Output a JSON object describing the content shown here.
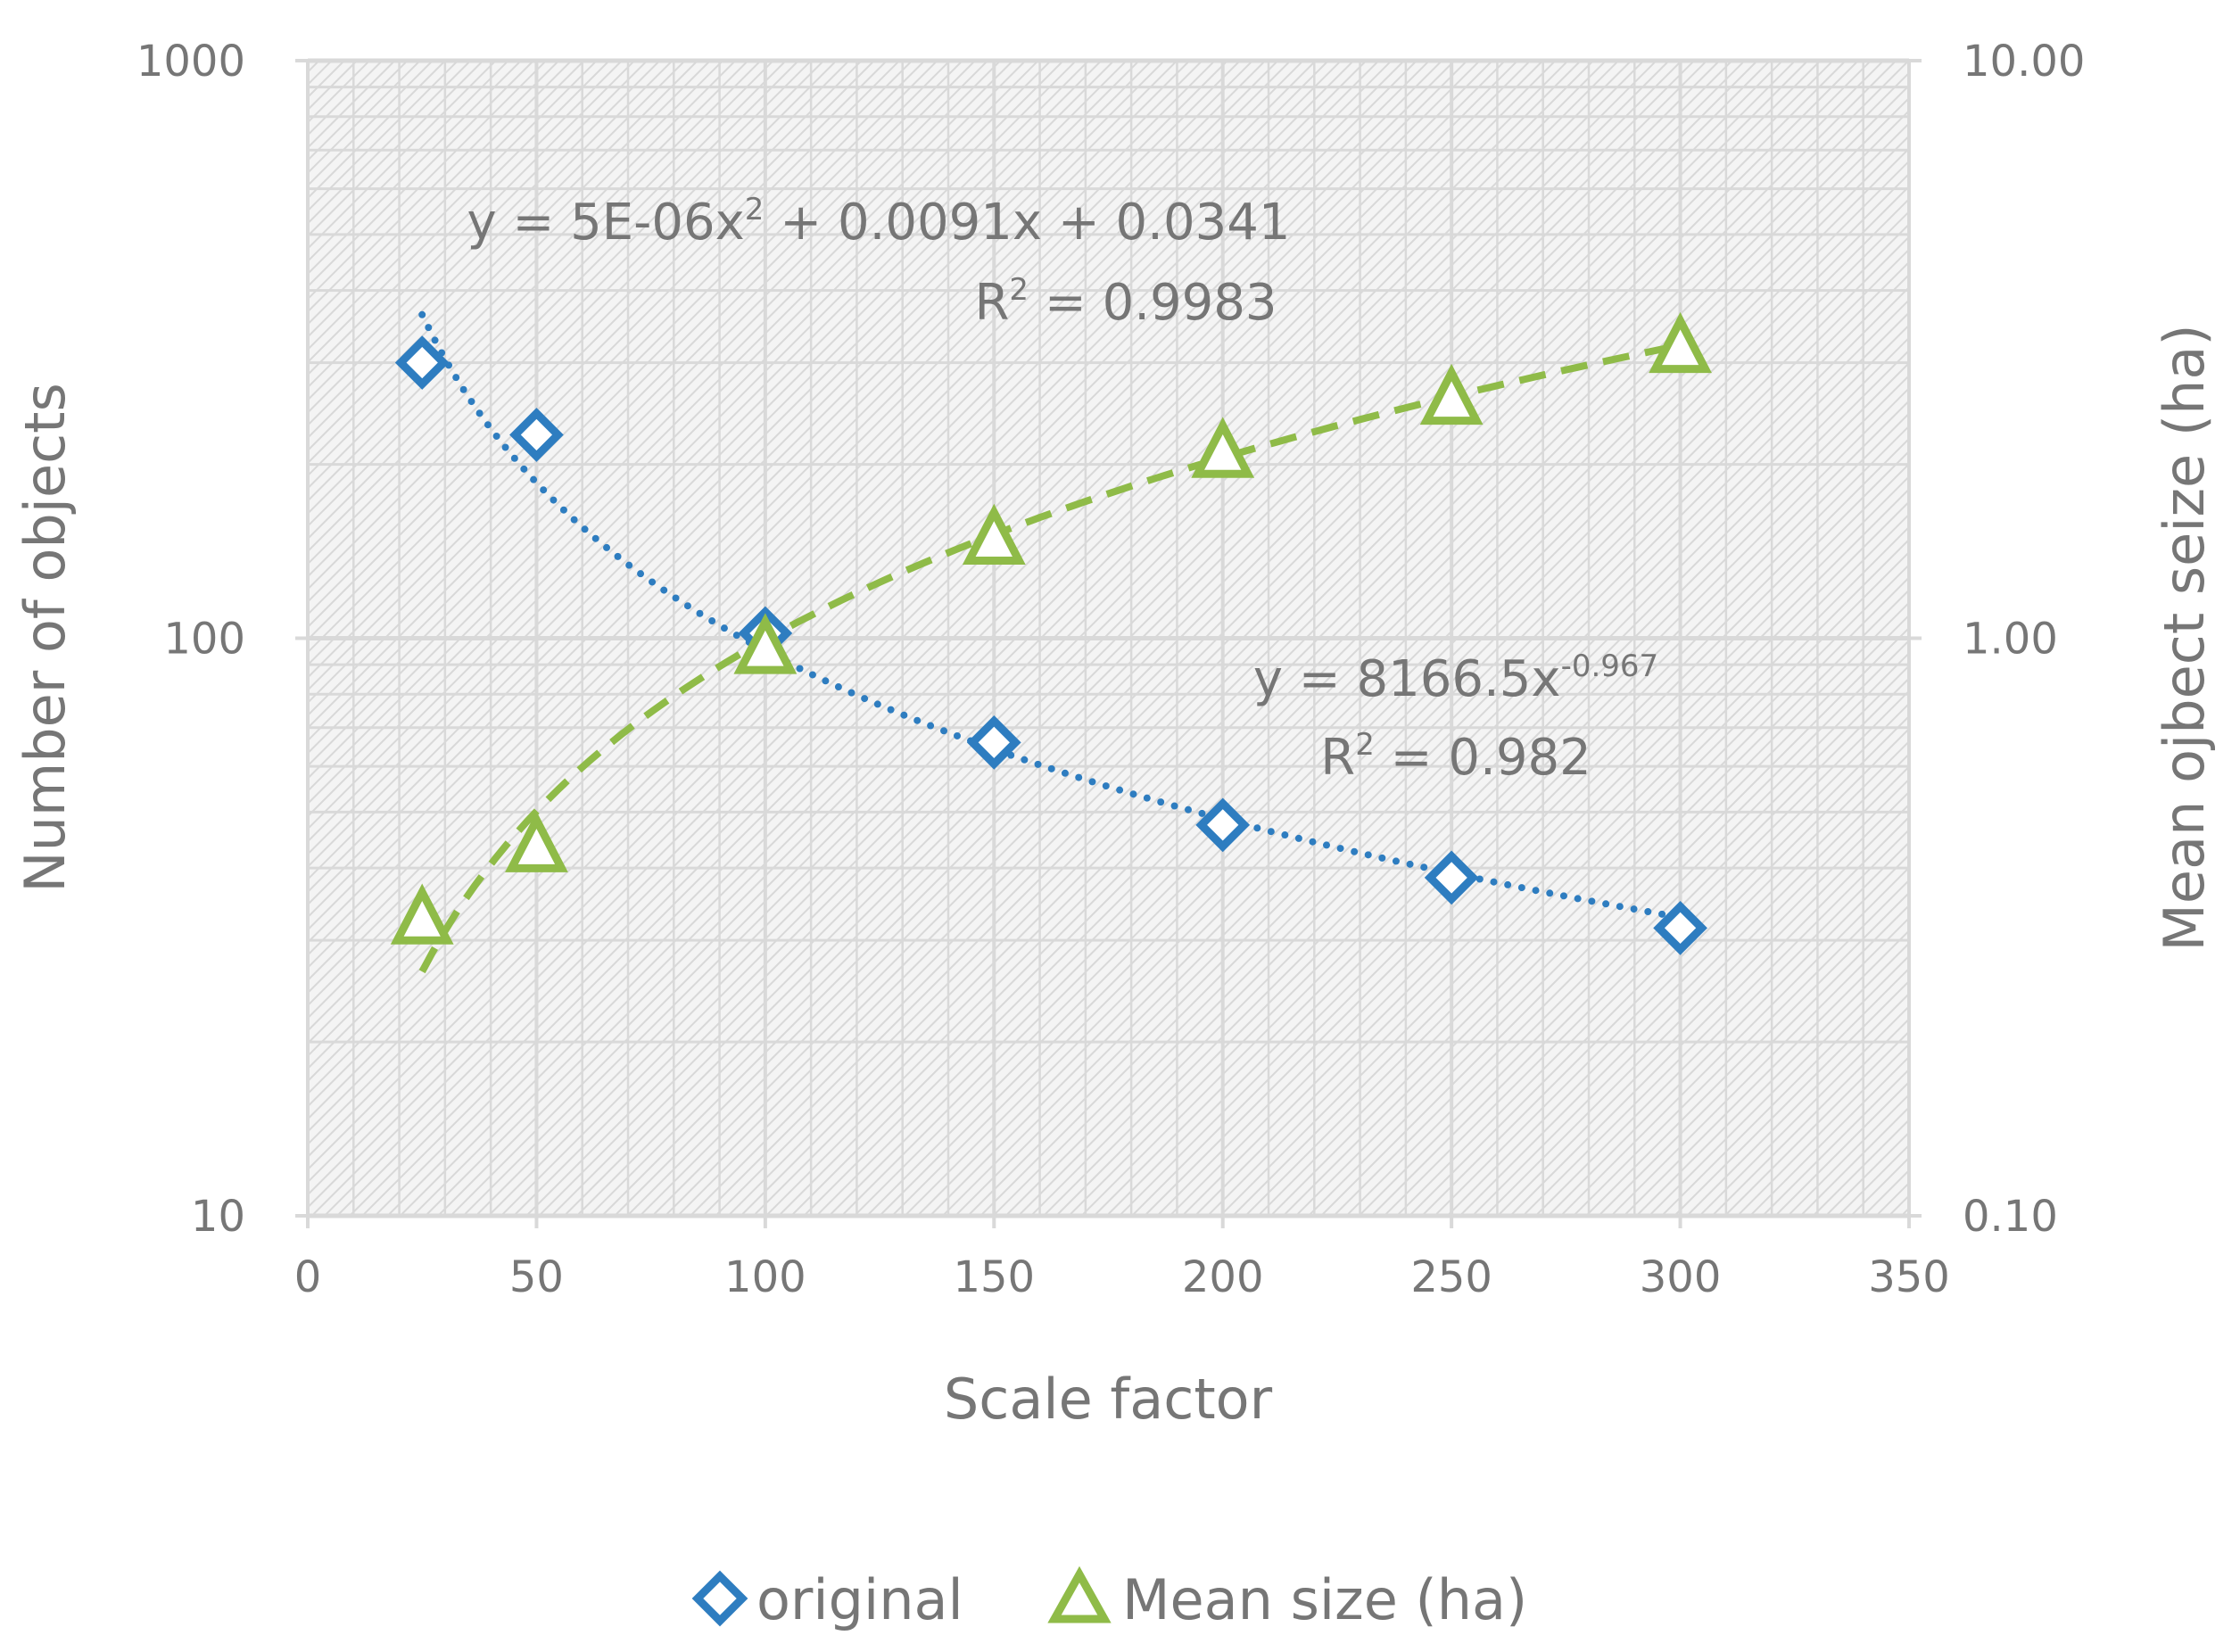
{
  "chart_data": {
    "type": "scatter",
    "title": "",
    "xlabel": "Scale factor",
    "ylabel_left": "Number of objects",
    "ylabel_right": "Mean ojbect seize (ha)",
    "xlim": [
      0,
      350
    ],
    "ylim_left": [
      10,
      1000
    ],
    "ylim_right": [
      0.1,
      10
    ],
    "yscale": "log",
    "grid": true,
    "legend_position": "bottom",
    "x_ticks": [
      "0",
      "50",
      "100",
      "150",
      "200",
      "250",
      "300",
      "350"
    ],
    "y_left_ticks": [
      "10",
      "100",
      "1000"
    ],
    "y_right_ticks": [
      "0.10",
      "1.00",
      "10.00"
    ],
    "colors": {
      "original": "#2e7dc0",
      "mean_size": "#8fbb48",
      "text": "#767676",
      "grid": "#d9d9d9"
    },
    "series": [
      {
        "name": "original",
        "axis": "left",
        "marker": "diamond",
        "x": [
          25,
          50,
          100,
          150,
          200,
          250,
          300
        ],
        "y": [
          300,
          225,
          102,
          66,
          47.5,
          38.5,
          31.5
        ],
        "trendline": {
          "type": "power",
          "a": 8166.5,
          "b": -0.967,
          "r2": 0.982
        }
      },
      {
        "name": "Mean size (ha)",
        "axis": "right",
        "marker": "triangle",
        "x": [
          25,
          50,
          100,
          150,
          200,
          250,
          300
        ],
        "y": [
          0.33,
          0.44,
          0.97,
          1.5,
          2.12,
          2.62,
          3.22
        ],
        "trendline": {
          "type": "polynomial",
          "coeffs": [
            5e-06,
            0.0091,
            0.0341
          ],
          "r2": 0.9983
        }
      }
    ],
    "annotations": {
      "poly_eq_y": "y = 5E-06x",
      "poly_eq_sup": "2",
      "poly_eq_rest": " + 0.0091x + 0.0341",
      "poly_r2_base": "R",
      "poly_r2_sup": "2",
      "poly_r2_rest": " = 0.9983",
      "power_eq_base": "y = 8166.5x",
      "power_eq_sup": "-0.967",
      "power_r2_base": "R",
      "power_r2_sup": "2",
      "power_r2_rest": " = 0.982"
    },
    "legend": [
      {
        "label": "original",
        "marker": "diamond"
      },
      {
        "label": "Mean size (ha)",
        "marker": "triangle"
      }
    ]
  }
}
